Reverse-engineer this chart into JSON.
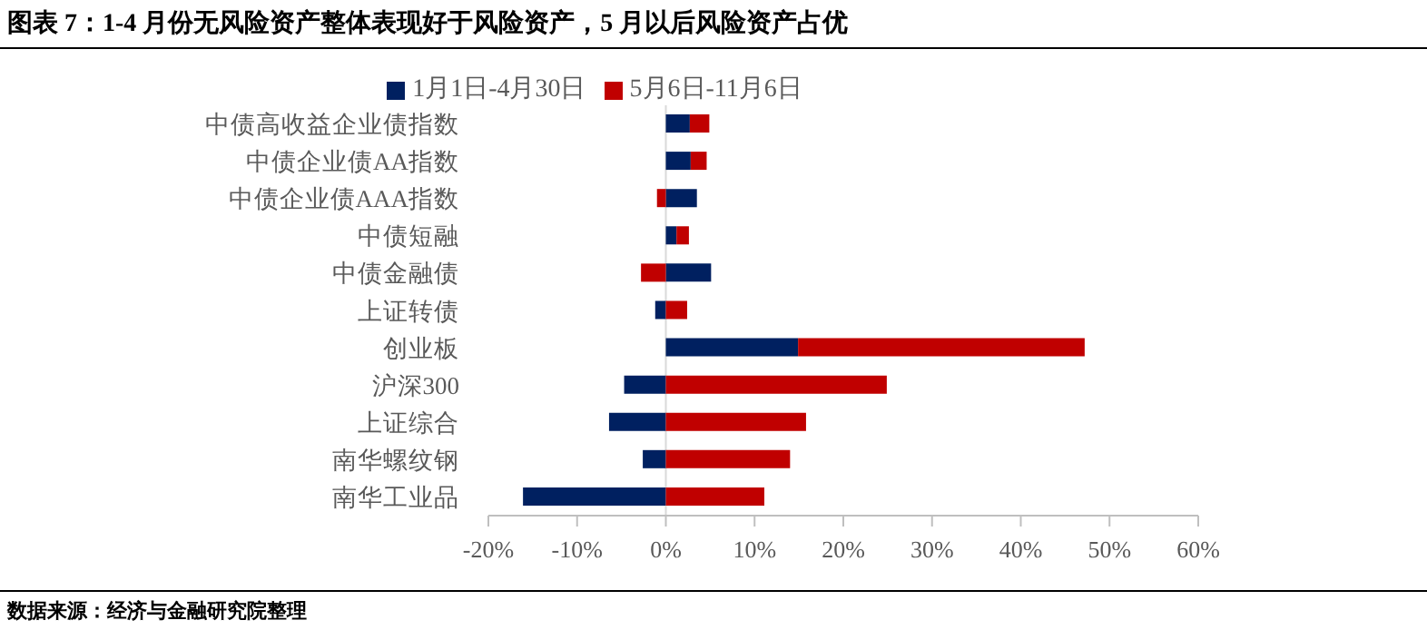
{
  "chart_data": {
    "type": "bar",
    "orientation": "horizontal",
    "stacked": true,
    "title": "图表 7：1-4 月份无风险资产整体表现好于风险资产，5 月以后风险资产占优",
    "annotations": [
      "数据来源：经济与金融研究院整理"
    ],
    "categories": [
      "中债高收益企业债指数",
      "中债企业债AA指数",
      "中债企业债AAA指数",
      "中债短融",
      "中债金融债",
      "上证转债",
      "创业板",
      "沪深300",
      "上证综合",
      "南华螺纹钢",
      "南华工业品"
    ],
    "series": [
      {
        "name": "1月1日-4月30日",
        "color": "#002060",
        "values": [
          2.7,
          2.8,
          3.5,
          1.2,
          5.1,
          -1.2,
          14.9,
          -4.7,
          -6.4,
          -2.6,
          -16.1
        ]
      },
      {
        "name": "5月6日-11月6日",
        "color": "#c00000",
        "values": [
          2.2,
          1.8,
          -1.0,
          1.4,
          -2.8,
          2.4,
          32.3,
          24.9,
          15.8,
          14.0,
          11.1
        ]
      }
    ],
    "xlim": [
      -20,
      60
    ],
    "xticks": [
      {
        "value": -20,
        "label": "-20%"
      },
      {
        "value": -10,
        "label": "-10%"
      },
      {
        "value": 0,
        "label": "0%"
      },
      {
        "value": 10,
        "label": "10%"
      },
      {
        "value": 20,
        "label": "20%"
      },
      {
        "value": 30,
        "label": "30%"
      },
      {
        "value": 40,
        "label": "40%"
      },
      {
        "value": 50,
        "label": "50%"
      },
      {
        "value": 60,
        "label": "60%"
      }
    ],
    "ref_lines": [
      {
        "axis": "x",
        "value": 0,
        "color": "#d9d9d9"
      }
    ],
    "legend": "top"
  }
}
